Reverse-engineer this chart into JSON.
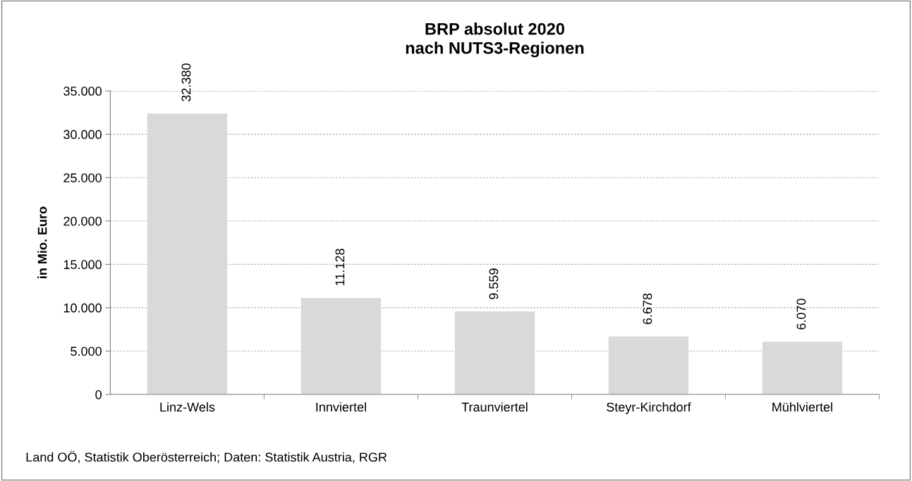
{
  "chart_data": {
    "type": "bar",
    "title": "BRP absolut 2020\nnach NUTS3-Regionen",
    "ylabel": "in Mio. Euro",
    "categories": [
      "Linz-Wels",
      "Innviertel",
      "Traunviertel",
      "Steyr-Kirchdorf",
      "Mühlviertel"
    ],
    "values": [
      32380,
      11128,
      9559,
      6678,
      6070
    ],
    "value_labels": [
      "32.380",
      "11.128",
      "9.559",
      "6.678",
      "6.070"
    ],
    "color": "#d9d9d9",
    "ylim": [
      0,
      35000
    ],
    "yticks": [
      0,
      {
        "value": 5000,
        "label": "5.000"
      },
      {
        "value": 10000,
        "label": "10.000"
      },
      {
        "value": 15000,
        "label": "15.000"
      },
      {
        "value": 20000,
        "label": "20.000"
      },
      {
        "value": 25000,
        "label": "25.000"
      },
      {
        "value": 30000,
        "label": "30.000"
      },
      {
        "value": 35000,
        "label": "35.000"
      }
    ],
    "grid": "y",
    "annotations": [
      "Land OÖ, Statistik Oberösterreich; Daten: Statistik Austria, RGR"
    ]
  }
}
